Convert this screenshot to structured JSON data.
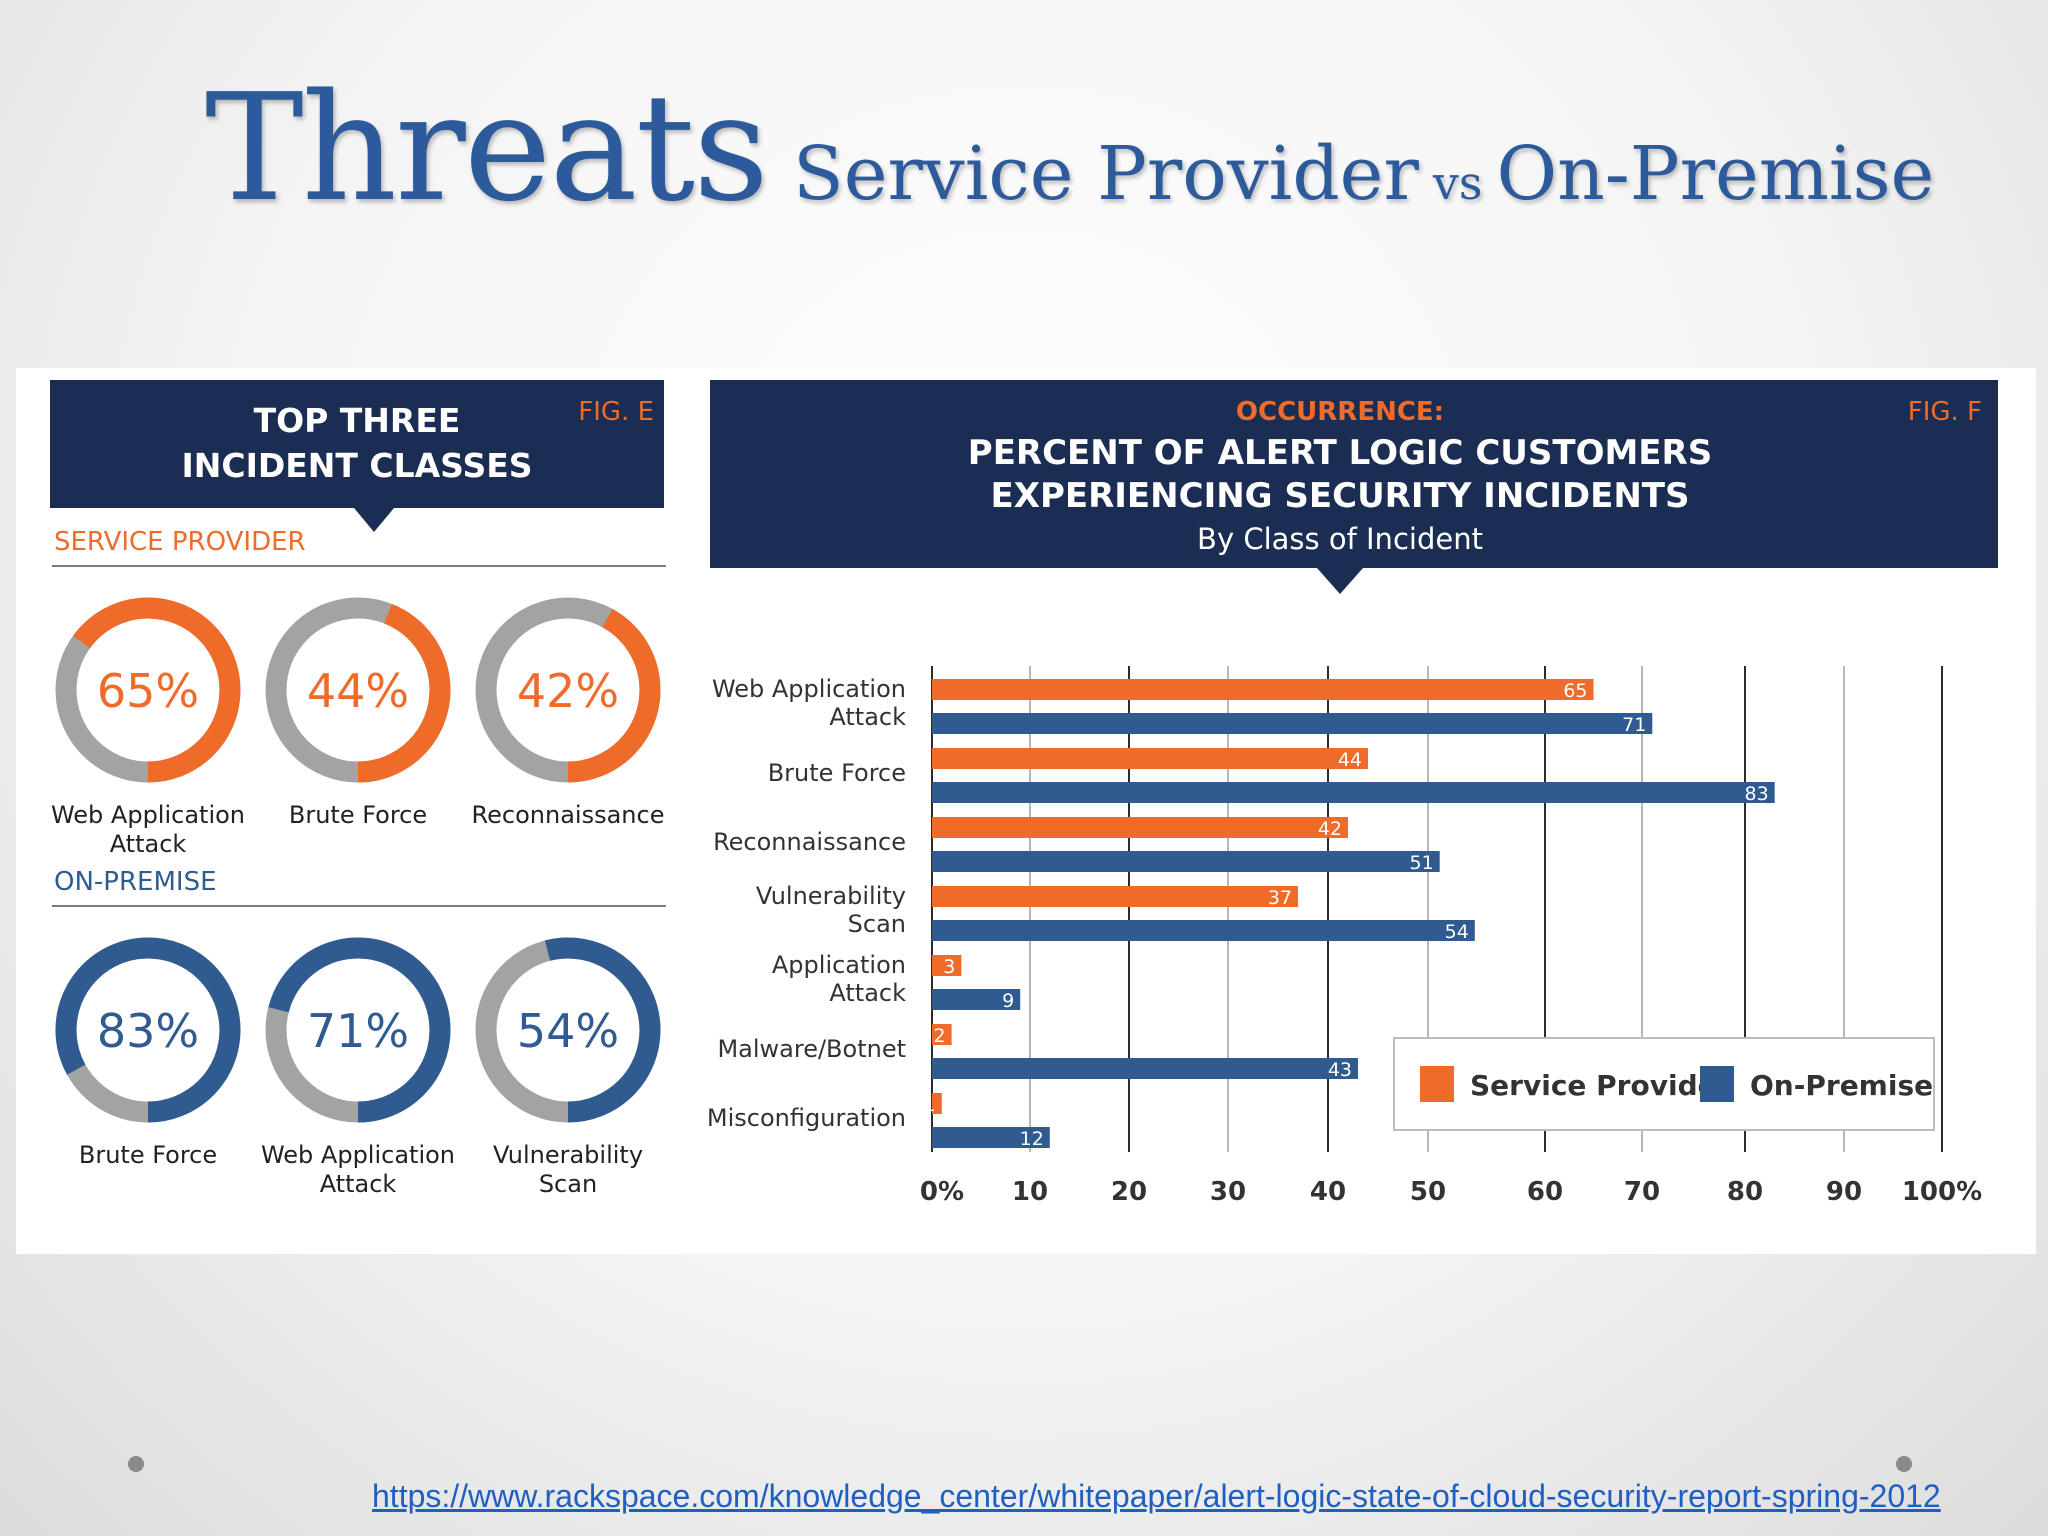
{
  "slide": {
    "title_main": "Threats",
    "title_part1": "Service Provider",
    "title_vs": "vs",
    "title_part2": "On-Premise",
    "source_url": "https://www.rackspace.com/knowledge_center/whitepaper/alert-logic-state-of-cloud-security-report-spring-2012"
  },
  "colors": {
    "navy": "#1b2d52",
    "orange": "#ef6b2a",
    "blue": "#2f5b91",
    "gray": "#a3a3a3"
  },
  "chart_data": [
    {
      "type": "pie",
      "fig_label": "FIG. E",
      "title": "TOP THREE INCIDENT CLASSES",
      "groups": [
        {
          "name": "SERVICE PROVIDER",
          "color": "#ef6b2a",
          "items": [
            {
              "label": "Web Application Attack",
              "value": 65,
              "display": "65%"
            },
            {
              "label": "Brute Force",
              "value": 44,
              "display": "44%"
            },
            {
              "label": "Reconnaissance",
              "value": 42,
              "display": "42%"
            }
          ]
        },
        {
          "name": "ON-PREMISE",
          "color": "#2f5b91",
          "items": [
            {
              "label": "Brute Force",
              "value": 83,
              "display": "83%"
            },
            {
              "label": "Web Application Attack",
              "value": 71,
              "display": "71%"
            },
            {
              "label": "Vulnerability Scan",
              "value": 54,
              "display": "54%"
            }
          ]
        }
      ]
    },
    {
      "type": "bar",
      "orientation": "horizontal",
      "fig_label": "FIG. F",
      "title_prefix": "OCCURRENCE:",
      "title": "PERCENT OF ALERT LOGIC CUSTOMERS EXPERIENCING SECURITY INCIDENTS",
      "subtitle": "By Class of Incident",
      "categories": [
        "Web Application Attack",
        "Brute Force",
        "Reconnaissance",
        "Vulnerability Scan",
        "Application Attack",
        "Malware/Botnet",
        "Misconfiguration"
      ],
      "series": [
        {
          "name": "Service Provider",
          "color": "#ef6b2a",
          "values": [
            65,
            44,
            42,
            37,
            3,
            2,
            1
          ]
        },
        {
          "name": "On-Premise",
          "color": "#2f5b91",
          "values": [
            71,
            83,
            51,
            54,
            9,
            43,
            12
          ]
        }
      ],
      "xticks": [
        "0%",
        "10",
        "20",
        "30",
        "40",
        "50",
        "60",
        "70",
        "80",
        "90",
        "100%"
      ],
      "xlim": [
        0,
        100
      ],
      "grid": true,
      "legend_position": "bottom-right"
    }
  ]
}
